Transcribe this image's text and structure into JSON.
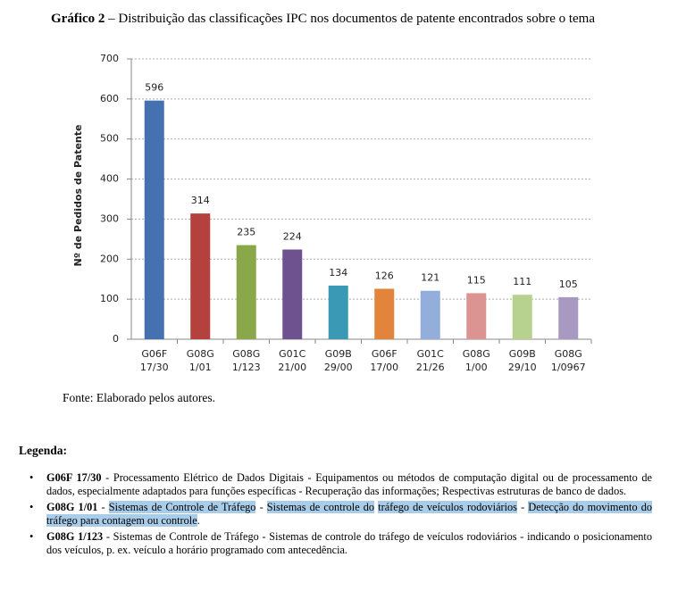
{
  "caption": {
    "label": "Gráfico 2",
    "text": "– Distribuição das classificações IPC nos documentos de patente encontrados sobre o tema"
  },
  "chart_data": {
    "type": "bar",
    "y_label": "Nº de Pedidos de Patente",
    "categories": [
      [
        "G06F",
        "17/30"
      ],
      [
        "G08G",
        "1/01"
      ],
      [
        "G08G",
        "1/123"
      ],
      [
        "G01C",
        "21/00"
      ],
      [
        "G09B",
        "29/00"
      ],
      [
        "G06F",
        "17/00"
      ],
      [
        "G01C",
        "21/26"
      ],
      [
        "G08G",
        "1/00"
      ],
      [
        "G09B",
        "29/10"
      ],
      [
        "G08G",
        "1/0967"
      ]
    ],
    "values": [
      596,
      314,
      235,
      224,
      134,
      126,
      121,
      115,
      111,
      105
    ],
    "colors": [
      "#4571b0",
      "#b4413d",
      "#8aa84a",
      "#6d528f",
      "#3a9ab5",
      "#e2843b",
      "#93aedb",
      "#dc9493",
      "#b7d28e",
      "#a899c3"
    ],
    "ylim": [
      0,
      700
    ],
    "yticks": [
      0,
      100,
      200,
      300,
      400,
      500,
      600,
      700
    ],
    "grid": true,
    "show_values": true
  },
  "source": "Fonte: Elaborado pelos autores.",
  "legend_section": {
    "title": "Legenda:",
    "items": [
      {
        "code": "G06F 17/30",
        "parts": [
          {
            "text": " - Processamento Elétrico de Dados Digitais - Equipamentos ou métodos de computação digital ou de processamento de dados, especialmente adaptados para funções específicas - Recuperação das informações; Respectivas estruturas de banco de dados.",
            "highlight": false
          }
        ]
      },
      {
        "code": "G08G 1/01",
        "parts": [
          {
            "text": " - ",
            "highlight": false
          },
          {
            "text": "Sistemas de Controle de Tráfego",
            "highlight": true
          },
          {
            "text": " - ",
            "highlight": false
          },
          {
            "text": "Sistemas de controle do",
            "highlight": true
          },
          {
            "text": " ",
            "highlight": false
          },
          {
            "text": "tráfego de veículos rodoviários",
            "highlight": true
          },
          {
            "text": " - ",
            "highlight": false
          },
          {
            "text": "Detecção do movimento do tráfego para contagem ou controle",
            "highlight": true
          },
          {
            "text": ".",
            "highlight": false
          }
        ]
      },
      {
        "code": "G08G 1/123",
        "parts": [
          {
            "text": " - Sistemas de Controle de Tráfego - Sistemas de controle do tráfego de veículos rodoviários - indicando o posicionamento dos veículos, p. ex. veículo a horário programado com antecedência.",
            "highlight": false
          }
        ]
      }
    ]
  }
}
